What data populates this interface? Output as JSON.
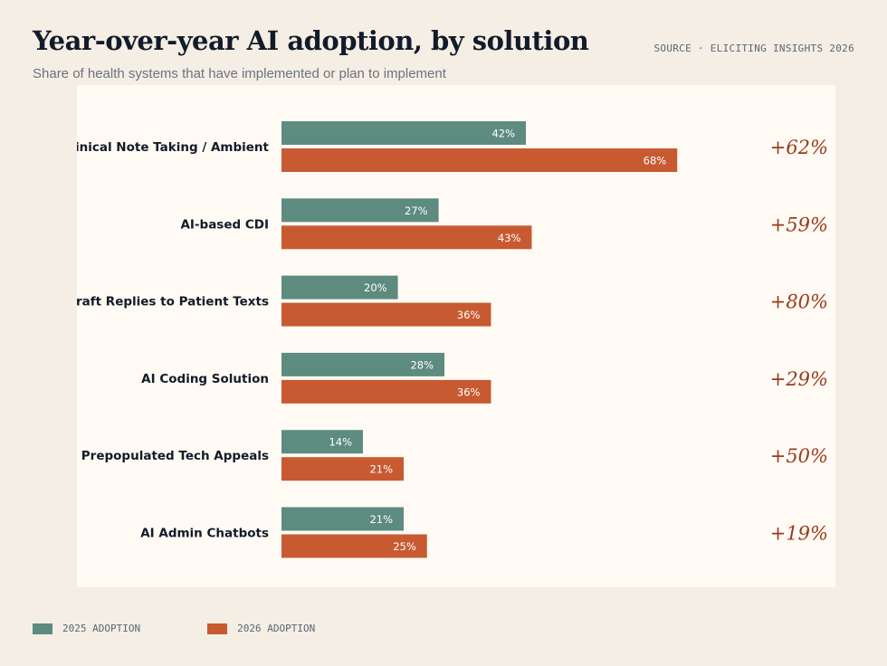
{
  "header": {
    "title": "Year-over-year AI adoption, by solution",
    "subtitle": "Share of health systems that have implemented or plan to implement",
    "source": "SOURCE · ELICITING INSIGHTS 2026"
  },
  "colors": {
    "series_2025": "#5e8b80",
    "series_2026": "#c85a32",
    "growth_text": "#9a3a1c",
    "label_text": "#121b29",
    "bar_label_text": "#ffffff"
  },
  "legend": [
    {
      "label": "2025 ADOPTION",
      "series": "2025"
    },
    {
      "label": "2026 ADOPTION",
      "series": "2026"
    }
  ],
  "chart_data": {
    "type": "bar",
    "orientation": "horizontal",
    "title": "Year-over-year AI adoption, by solution",
    "subtitle": "Share of health systems that have implemented or plan to implement",
    "xlabel": "",
    "ylabel": "",
    "xlim": [
      0,
      100
    ],
    "grid": false,
    "legend_position": "bottom-left",
    "categories": [
      "Clinical Note Taking / Ambient",
      "AI-based CDI",
      "Draft Replies to Patient Texts",
      "AI Coding Solution",
      "AI Prepopulated Tech Appeals",
      "AI Admin Chatbots"
    ],
    "series": [
      {
        "name": "2025 Adoption",
        "values": [
          42,
          27,
          20,
          28,
          14,
          21
        ],
        "labels": [
          "42%",
          "27%",
          "20%",
          "28%",
          "14%",
          "21%"
        ]
      },
      {
        "name": "2026 Adoption",
        "values": [
          68,
          43,
          36,
          36,
          21,
          25
        ],
        "labels": [
          "68%",
          "43%",
          "36%",
          "36%",
          "21%",
          "25%"
        ]
      }
    ],
    "annotations": {
      "growth": [
        "+62%",
        "+59%",
        "+80%",
        "+29%",
        "+50%",
        "+19%"
      ]
    }
  }
}
